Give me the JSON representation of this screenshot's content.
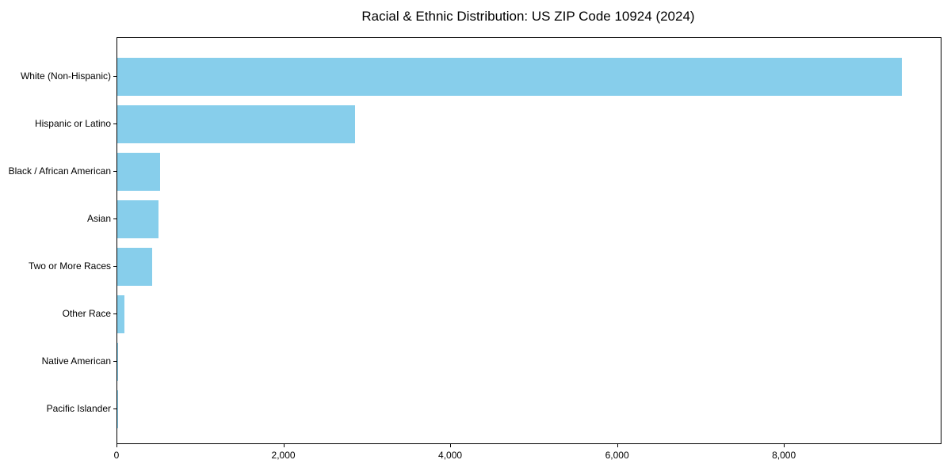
{
  "title": "Racial & Ethnic Distribution: US ZIP Code 10924 (2024)",
  "chart_data": {
    "type": "bar",
    "orientation": "horizontal",
    "title": "Racial & Ethnic Distribution: US ZIP Code 10924 (2024)",
    "categories": [
      "White (Non-Hispanic)",
      "Hispanic or Latino",
      "Black / African American",
      "Asian",
      "Two or More Races",
      "Other Race",
      "Native American",
      "Pacific Islander"
    ],
    "values": [
      9400,
      2850,
      515,
      490,
      415,
      90,
      12,
      3
    ],
    "xlabel": "",
    "ylabel": "",
    "xlim": [
      0,
      9870
    ],
    "xticks": [
      0,
      2000,
      4000,
      6000,
      8000
    ],
    "xtick_labels": [
      "0",
      "2,000",
      "4,000",
      "6,000",
      "8,000"
    ],
    "bar_color": "#87CEEB",
    "axis_color": "#000000",
    "background_color": "#FFFFFF",
    "grid": false,
    "legend": null
  }
}
